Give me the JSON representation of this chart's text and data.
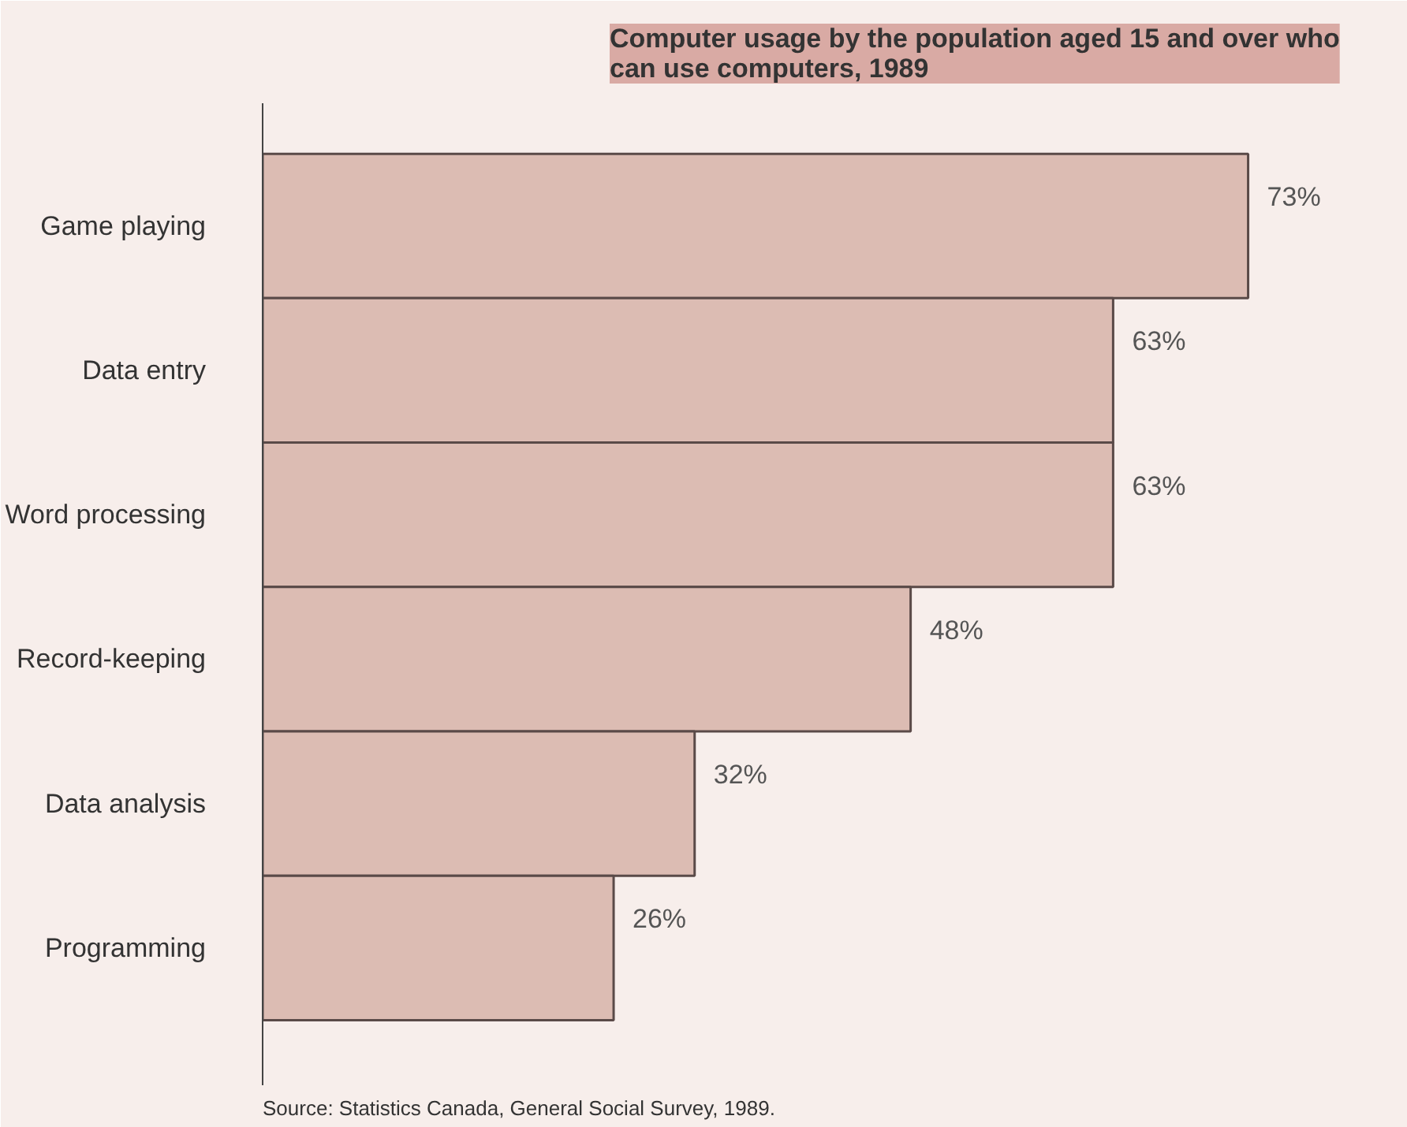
{
  "chart_data": {
    "type": "bar",
    "orientation": "horizontal",
    "title": "Computer usage by the population aged 15 and over who can use computers, 1989",
    "categories": [
      "Game playing",
      "Data entry",
      "Word processing",
      "Record-keeping",
      "Data analysis",
      "Programming"
    ],
    "values": [
      73,
      63,
      63,
      48,
      32,
      26
    ],
    "value_labels": [
      "73%",
      "63%",
      "63%",
      "48%",
      "32%",
      "26%"
    ],
    "color": "#dcbcb3",
    "annotations": [
      "Source: Statistics Canada, General Social Survey, 1989."
    ],
    "grid": false
  }
}
